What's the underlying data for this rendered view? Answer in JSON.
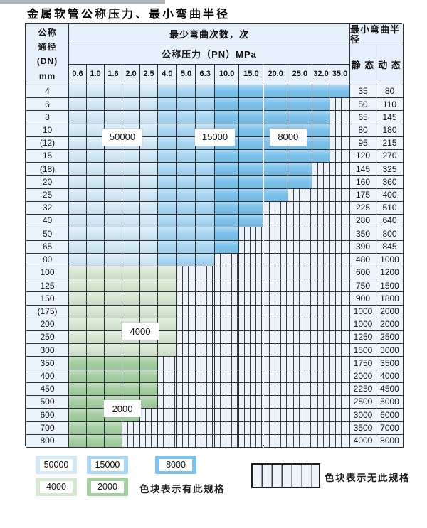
{
  "title": "金属软管公称压力、最小弯曲半径",
  "table": {
    "headers": {
      "dn_lines": [
        "公称",
        "通径",
        "(DN)",
        "mm"
      ],
      "cycles": "最少弯曲次数，次",
      "pn": "公称压力（PN）MPa",
      "radius": "最小弯曲半径",
      "static": "静 态",
      "dynamic": "动 态"
    },
    "pressure_columns": [
      "0.6",
      "1.0",
      "1.6",
      "2.0",
      "2.5",
      "4.0",
      "5.0",
      "6.3",
      "10.0",
      "15.0",
      "20.0",
      "25.0",
      "32.0",
      "35.0"
    ],
    "rows": [
      {
        "dn": "4",
        "available_through": "35.0",
        "static": "35",
        "dynamic": "80"
      },
      {
        "dn": "6",
        "available_through": "32.0",
        "static": "50",
        "dynamic": "110"
      },
      {
        "dn": "8",
        "available_through": "32.0",
        "static": "65",
        "dynamic": "145"
      },
      {
        "dn": "10",
        "available_through": "32.0",
        "static": "80",
        "dynamic": "180"
      },
      {
        "dn": "(12)",
        "available_through": "32.0",
        "static": "95",
        "dynamic": "215"
      },
      {
        "dn": "15",
        "available_through": "32.0",
        "static": "120",
        "dynamic": "270"
      },
      {
        "dn": "(18)",
        "available_through": "25.0",
        "static": "145",
        "dynamic": "325"
      },
      {
        "dn": "20",
        "available_through": "25.0",
        "static": "160",
        "dynamic": "360"
      },
      {
        "dn": "25",
        "available_through": "20.0",
        "static": "175",
        "dynamic": "400"
      },
      {
        "dn": "32",
        "available_through": "15.0",
        "static": "225",
        "dynamic": "510"
      },
      {
        "dn": "40",
        "available_through": "15.0",
        "static": "280",
        "dynamic": "640"
      },
      {
        "dn": "50",
        "available_through": "10.0",
        "static": "350",
        "dynamic": "800"
      },
      {
        "dn": "65",
        "available_through": "10.0",
        "static": "390",
        "dynamic": "845"
      },
      {
        "dn": "80",
        "available_through": "6.3",
        "static": "480",
        "dynamic": "1000"
      },
      {
        "dn": "100",
        "available_through": "4.0",
        "static": "600",
        "dynamic": "1200"
      },
      {
        "dn": "125",
        "available_through": "4.0",
        "static": "750",
        "dynamic": "1500"
      },
      {
        "dn": "150",
        "available_through": "4.0",
        "static": "900",
        "dynamic": "1800"
      },
      {
        "dn": "(175)",
        "available_through": "4.0",
        "static": "1000",
        "dynamic": "2000"
      },
      {
        "dn": "200",
        "available_through": "4.0",
        "static": "1000",
        "dynamic": "2000"
      },
      {
        "dn": "250",
        "available_through": "4.0",
        "static": "1250",
        "dynamic": "2500"
      },
      {
        "dn": "300",
        "available_through": "4.0",
        "static": "1500",
        "dynamic": "3000"
      },
      {
        "dn": "350",
        "available_through": "2.5",
        "static": "1750",
        "dynamic": "3500"
      },
      {
        "dn": "400",
        "available_through": "2.5",
        "static": "2000",
        "dynamic": "4000"
      },
      {
        "dn": "450",
        "available_through": "2.5",
        "static": "2250",
        "dynamic": "4500"
      },
      {
        "dn": "500",
        "available_through": "2.5",
        "static": "2500",
        "dynamic": "5000"
      },
      {
        "dn": "600",
        "available_through": "2.0",
        "static": "3000",
        "dynamic": "6000"
      },
      {
        "dn": "700",
        "available_through": "1.6",
        "static": "3500",
        "dynamic": "7000"
      },
      {
        "dn": "800",
        "available_through": "1.6",
        "static": "4000",
        "dynamic": "8000"
      }
    ]
  },
  "cycle_bands": {
    "blue_by_column": [
      {
        "cycles": "50000",
        "from_column": "0.6",
        "to_column": "2.5",
        "color": "#d3e9f8"
      },
      {
        "cycles": "15000",
        "from_column": "4.0",
        "to_column": "6.3",
        "color": "#a9d6f2"
      },
      {
        "cycles": "8000",
        "from_column": "10.0",
        "to_column": "35.0",
        "color": "#7cc2ec"
      }
    ],
    "green_by_row": [
      {
        "cycles": "4000",
        "from_dn": "100",
        "to_dn": "300",
        "color": "#d6e8d1"
      },
      {
        "cycles": "2000",
        "from_dn": "350",
        "to_dn": "800",
        "color": "#a4cfa1"
      }
    ]
  },
  "table_labels": [
    {
      "text": "50000",
      "between_columns": [
        "1.6",
        "2.0"
      ],
      "between_rows": [
        "10",
        "(12)"
      ]
    },
    {
      "text": "15000",
      "between_columns": [
        "6.3",
        "10.0"
      ],
      "between_rows": [
        "10",
        "(12)"
      ]
    },
    {
      "text": "8000",
      "between_columns": [
        "20.0",
        "25.0"
      ],
      "between_rows": [
        "10",
        "(12)"
      ]
    },
    {
      "text": "4000",
      "between_columns": [
        "2.0",
        "2.5"
      ],
      "between_rows": [
        "200",
        "250"
      ]
    },
    {
      "text": "2000",
      "between_columns": [
        "1.6",
        "2.0"
      ],
      "between_rows": [
        "500",
        "600"
      ]
    }
  ],
  "legend": {
    "swatches": [
      {
        "label": "50000",
        "color": "#d3e9f8"
      },
      {
        "label": "15000",
        "color": "#a9d6f2"
      },
      {
        "label": "8000",
        "color": "#7cc2ec"
      },
      {
        "label": "4000",
        "color": "#d6e8d1"
      },
      {
        "label": "2000",
        "color": "#a4cfa1"
      }
    ],
    "available_note": "色块表示有此规格",
    "unavailable_note": "色块表示无此规格"
  }
}
